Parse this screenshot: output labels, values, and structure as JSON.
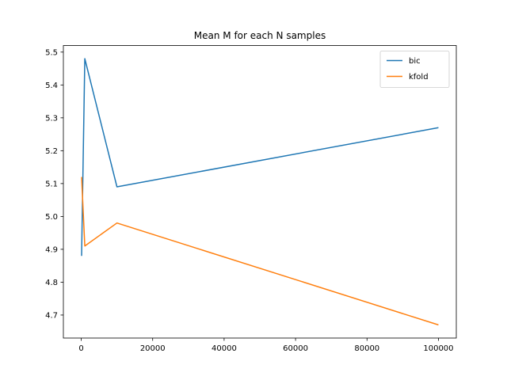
{
  "chart_data": {
    "type": "line",
    "title": "Mean M for each N samples",
    "xlabel": "",
    "ylabel": "",
    "xlim": [
      -5000,
      105000
    ],
    "ylim": [
      4.63,
      5.52
    ],
    "xticks": [
      0,
      20000,
      40000,
      60000,
      80000,
      100000
    ],
    "yticks": [
      4.7,
      4.8,
      4.9,
      5.0,
      5.1,
      5.2,
      5.3,
      5.4,
      5.5
    ],
    "xtick_labels": [
      "0",
      "20000",
      "40000",
      "60000",
      "80000",
      "100000"
    ],
    "ytick_labels": [
      "4.7",
      "4.8",
      "4.9",
      "5.0",
      "5.1",
      "5.2",
      "5.3",
      "5.4",
      "5.5"
    ],
    "grid": false,
    "legend_position": "upper-right",
    "series": [
      {
        "name": "bic",
        "color": "#1f77b4",
        "x": [
          100,
          1000,
          10000,
          100000
        ],
        "y": [
          4.88,
          5.48,
          5.09,
          5.27
        ]
      },
      {
        "name": "kfold",
        "color": "#ff7f0e",
        "x": [
          100,
          1000,
          10000,
          100000
        ],
        "y": [
          5.12,
          4.91,
          4.98,
          4.67
        ]
      }
    ]
  }
}
